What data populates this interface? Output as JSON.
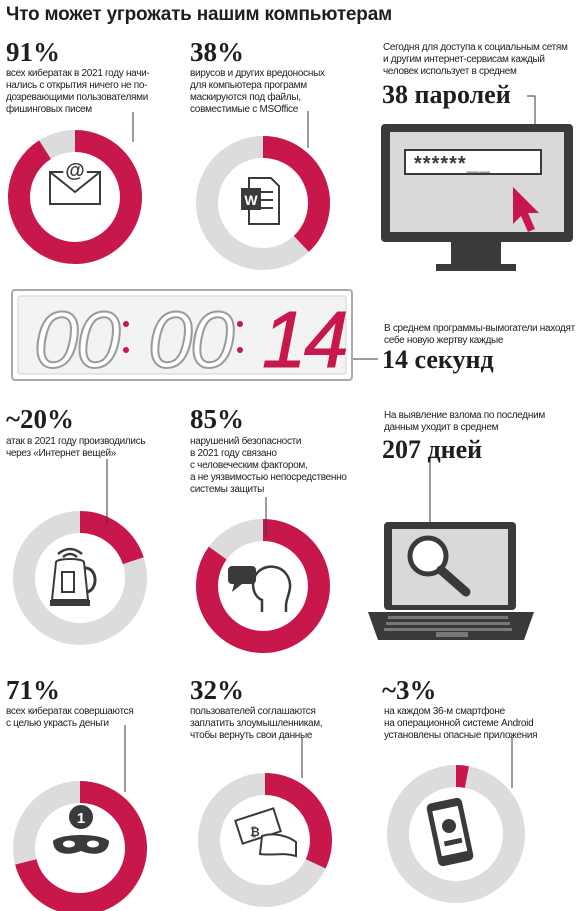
{
  "title": "Что может угрожать нашим компьютерам",
  "colors": {
    "accent": "#c8174a",
    "ring_gray": "#dcdcdc",
    "dark": "#3a3a3a",
    "screen_gray": "#cfcfcf"
  },
  "stats": {
    "s1": {
      "value": "91%",
      "fraction": 0.91,
      "text": [
        "всех кибератак в 2021 году начи-",
        "нались с открытия ничего не по-",
        "дозревающими пользователями",
        "фишинговых писем"
      ],
      "icon": "email-icon"
    },
    "s2": {
      "value": "38%",
      "fraction": 0.38,
      "text": [
        "вирусов и других вредоносных",
        "для компьютера программ",
        "маскируются под файлы,",
        "совместимые с MSOffice"
      ],
      "icon": "word-document-icon"
    },
    "s3": {
      "value": "38 паролей",
      "text": [
        "Сегодня для доступа к социальным сетям",
        "и другим интернет-сервисам каждый",
        "человек использует в среднем"
      ],
      "icon": "monitor-password-icon",
      "password_mask": "******__"
    },
    "s4": {
      "value": "14 секунд",
      "text": [
        "В среднем программы-вымогатели находят",
        "себе новую жертву каждые"
      ],
      "timer": {
        "dim": [
          "0",
          "0",
          "0",
          "0"
        ],
        "lit": [
          "1",
          "4"
        ]
      }
    },
    "s5": {
      "value": "~20%",
      "fraction": 0.2,
      "text": [
        "атак в 2021 году производились",
        "через «Интернет вещей»"
      ],
      "icon": "smart-kettle-icon"
    },
    "s6": {
      "value": "85%",
      "fraction": 0.85,
      "text": [
        "нарушений безопасности",
        "в 2021 году связано",
        "с человеческим фактором,",
        "а не уязвимостью непосредственно",
        "системы защиты"
      ],
      "icon": "person-speech-icon"
    },
    "s7": {
      "value": "207 дней",
      "text": [
        "На выявление взлома по последним",
        "данным уходит в среднем"
      ],
      "icon": "laptop-magnifier-icon"
    },
    "s8": {
      "value": "71%",
      "fraction": 0.71,
      "text": [
        "всех кибератак совершаются",
        "с целью украсть деньги"
      ],
      "icon": "thief-mask-icon"
    },
    "s9": {
      "value": "32%",
      "fraction": 0.32,
      "text": [
        "пользователей соглашаются",
        "заплатить злоумышленникам,",
        "чтобы вернуть свои данные"
      ],
      "icon": "payment-hand-icon"
    },
    "s10": {
      "value": "~3%",
      "fraction": 0.03,
      "text": [
        "на каждом 36-м смартфоне",
        "на операционной системе Android",
        "установлены опасные приложения"
      ],
      "icon": "infected-smartphone-icon"
    }
  }
}
